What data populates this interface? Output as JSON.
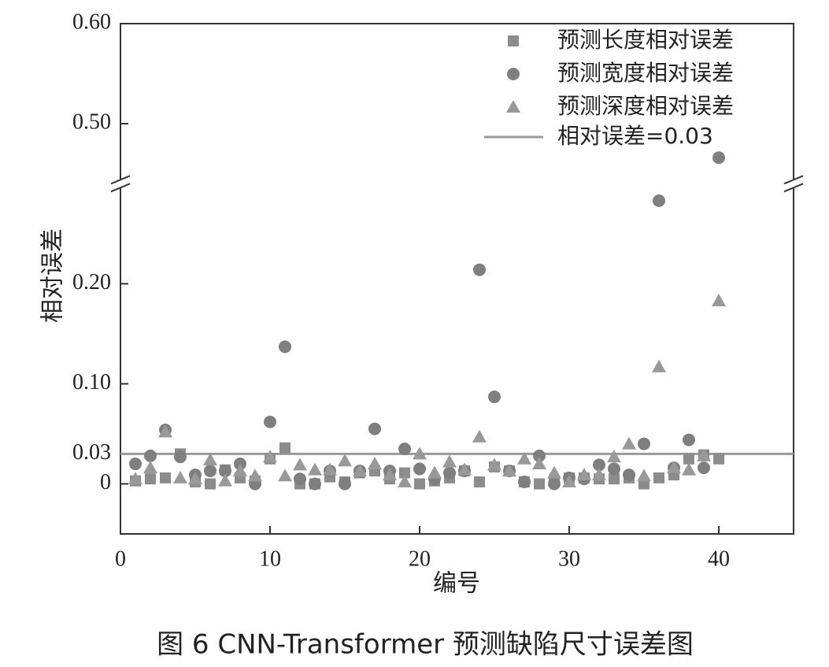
{
  "chart_data": {
    "type": "scatter",
    "caption": "图 6  CNN-Transformer 预测缺陷尺寸误差图",
    "xlabel": "编号",
    "ylabel": "相对误差",
    "xlim": [
      0,
      45
    ],
    "xticks": [
      0,
      10,
      20,
      30,
      40
    ],
    "ylim": [
      -0.05,
      0.6
    ],
    "ybreak": [
      0.3,
      0.44
    ],
    "yticks": [
      0,
      {
        "value": 0.03,
        "label": "0.03"
      },
      {
        "value": 0.1,
        "label": "0.10"
      },
      {
        "value": 0.2,
        "label": "0.20"
      },
      {
        "value": 0.5,
        "label": "0.50"
      },
      {
        "value": 0.6,
        "label": "0.60"
      }
    ],
    "x": [
      1,
      2,
      3,
      4,
      5,
      6,
      7,
      8,
      9,
      10,
      11,
      12,
      13,
      14,
      15,
      16,
      17,
      18,
      19,
      20,
      21,
      22,
      23,
      24,
      25,
      26,
      27,
      28,
      29,
      30,
      31,
      32,
      33,
      34,
      35,
      36,
      37,
      38,
      39,
      40
    ],
    "series": [
      {
        "name": "预测长度相对误差",
        "color": "#8c8c8c",
        "marker": "square",
        "values": [
          0.003,
          0.005,
          0.006,
          0.03,
          0.002,
          0,
          0.014,
          0.006,
          0.003,
          0.025,
          0.036,
          0,
          0,
          0.007,
          0.002,
          0.011,
          0.013,
          0.005,
          0.011,
          0,
          0.003,
          0.006,
          0.013,
          0.002,
          0.017,
          0.013,
          0.002,
          0,
          0.002,
          0.006,
          0.006,
          0.005,
          0.005,
          0.006,
          0,
          0.006,
          0.009,
          0.025,
          0.029,
          0.025
        ]
      },
      {
        "name": "预测宽度相对误差",
        "color": "#7f7f7f",
        "marker": "circle",
        "values": [
          0.02,
          0.028,
          0.054,
          0.027,
          0.009,
          0.013,
          0.013,
          0.02,
          0,
          0.062,
          0.137,
          0.005,
          0,
          0.013,
          0,
          0.013,
          0.055,
          0.013,
          0.035,
          0.015,
          0.005,
          0.011,
          0.013,
          0.214,
          0.087,
          0.013,
          0.002,
          0.028,
          0,
          0.006,
          0.005,
          0.019,
          0.015,
          0.009,
          0.04,
          0.283,
          0.016,
          0.044,
          0.016,
          0.466
        ]
      },
      {
        "name": "预测深度相对误差",
        "color": "#999999",
        "marker": "triangle",
        "values": [
          0.005,
          0.016,
          0.052,
          0.006,
          0.005,
          0.024,
          0.003,
          0.013,
          0.008,
          0.027,
          0.008,
          0.019,
          0.014,
          0.014,
          0.023,
          0.013,
          0.02,
          0.009,
          0.002,
          0.03,
          0.011,
          0.022,
          0.014,
          0.047,
          0.019,
          0.013,
          0.025,
          0.02,
          0.011,
          0.002,
          0.009,
          0.009,
          0.027,
          0.04,
          0.008,
          0.117,
          0.016,
          0.014,
          0.028,
          0.183
        ]
      }
    ],
    "reference_line": {
      "name": "相对误差=0.03",
      "value": 0.03,
      "color": "#9a9a9a"
    }
  }
}
